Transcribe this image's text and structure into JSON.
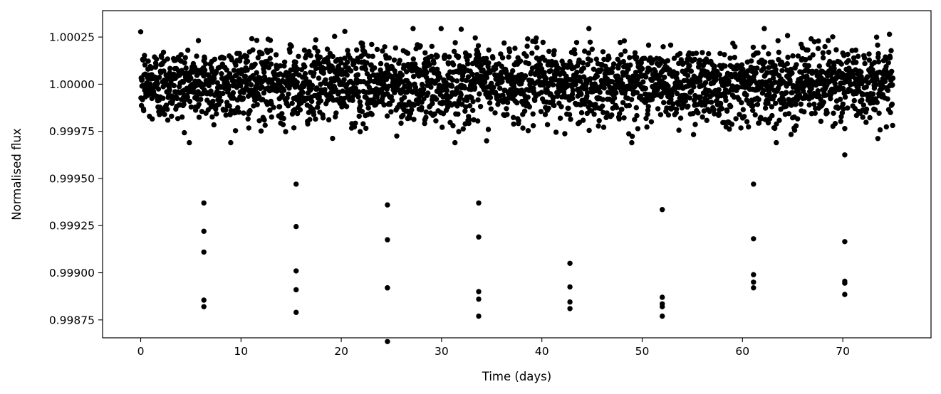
{
  "chart_data": {
    "type": "scatter",
    "title": "",
    "xlabel": "Time (days)",
    "ylabel": "Normalised flux",
    "xlim": [
      -3.8,
      78.8
    ],
    "ylim": [
      0.998655,
      1.00039
    ],
    "xticks": [
      0,
      10,
      20,
      30,
      40,
      50,
      60,
      70
    ],
    "xtick_labels": [
      "0",
      "10",
      "20",
      "30",
      "40",
      "50",
      "60",
      "70"
    ],
    "yticks": [
      0.99875,
      0.999,
      0.99925,
      0.9995,
      0.99975,
      1.0,
      1.00025
    ],
    "ytick_labels": [
      "0.99875",
      "0.99900",
      "0.99925",
      "0.99950",
      "0.99975",
      "1.00000",
      "1.00025"
    ],
    "grid": false,
    "legend": null,
    "marker_color": "#000000",
    "baseline": {
      "description": "out-of-transit scatter, ~3000 points evenly sampled",
      "x_range": [
        0.0,
        75.0
      ],
      "mean": 1.0,
      "std": 0.0001,
      "n_points": 3000
    },
    "transit_points": [
      {
        "x": 6.3,
        "y": 0.99937
      },
      {
        "x": 6.3,
        "y": 0.99922
      },
      {
        "x": 6.3,
        "y": 0.99911
      },
      {
        "x": 6.3,
        "y": 0.998855
      },
      {
        "x": 6.3,
        "y": 0.99882
      },
      {
        "x": 15.5,
        "y": 0.99947
      },
      {
        "x": 15.5,
        "y": 0.999245
      },
      {
        "x": 15.5,
        "y": 0.99901
      },
      {
        "x": 15.5,
        "y": 0.99891
      },
      {
        "x": 15.5,
        "y": 0.99879
      },
      {
        "x": 24.6,
        "y": 0.99936
      },
      {
        "x": 24.6,
        "y": 0.999175
      },
      {
        "x": 24.6,
        "y": 0.99892
      },
      {
        "x": 24.6,
        "y": 0.99892
      },
      {
        "x": 24.6,
        "y": 0.998635
      },
      {
        "x": 33.7,
        "y": 0.99937
      },
      {
        "x": 33.7,
        "y": 0.99919
      },
      {
        "x": 33.7,
        "y": 0.9989
      },
      {
        "x": 33.7,
        "y": 0.99886
      },
      {
        "x": 33.7,
        "y": 0.99877
      },
      {
        "x": 42.8,
        "y": 0.99905
      },
      {
        "x": 42.8,
        "y": 0.998925
      },
      {
        "x": 42.8,
        "y": 0.998845
      },
      {
        "x": 42.8,
        "y": 0.99881
      },
      {
        "x": 52.0,
        "y": 0.999335
      },
      {
        "x": 52.0,
        "y": 0.99887
      },
      {
        "x": 52.0,
        "y": 0.998835
      },
      {
        "x": 52.0,
        "y": 0.99882
      },
      {
        "x": 52.0,
        "y": 0.99877
      },
      {
        "x": 61.1,
        "y": 0.99947
      },
      {
        "x": 61.1,
        "y": 0.99918
      },
      {
        "x": 61.1,
        "y": 0.99899
      },
      {
        "x": 61.1,
        "y": 0.99895
      },
      {
        "x": 61.1,
        "y": 0.99892
      },
      {
        "x": 70.2,
        "y": 0.999625
      },
      {
        "x": 70.2,
        "y": 0.999165
      },
      {
        "x": 70.2,
        "y": 0.998955
      },
      {
        "x": 70.2,
        "y": 0.998945
      },
      {
        "x": 70.2,
        "y": 0.998885
      }
    ]
  }
}
